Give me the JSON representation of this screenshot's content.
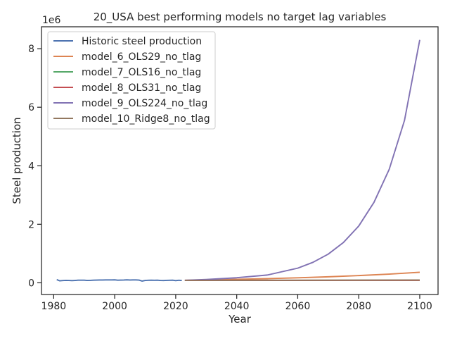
{
  "chart_data": {
    "type": "line",
    "title": "20_USA best performing models no target lag variables",
    "xlabel": "Year",
    "ylabel": "Steel production",
    "y_offset_text": "1e6",
    "xlim": [
      1976,
      2106
    ],
    "ylim": [
      -0.4,
      8.75
    ],
    "y_unit_multiplier": 1000000,
    "xticks": [
      1980,
      2000,
      2020,
      2040,
      2060,
      2080,
      2100
    ],
    "yticks": [
      0,
      2,
      4,
      6,
      8
    ],
    "grid": false,
    "legend_position": "top-left",
    "series": [
      {
        "name": "Historic steel production",
        "color": "#4c72b0",
        "x": [
          1981,
          1982,
          1983,
          1984,
          1985,
          1986,
          1987,
          1988,
          1989,
          1990,
          1991,
          1992,
          1993,
          1994,
          1995,
          1996,
          1997,
          1998,
          1999,
          2000,
          2001,
          2002,
          2003,
          2004,
          2005,
          2006,
          2007,
          2008,
          2009,
          2010,
          2011,
          2012,
          2013,
          2014,
          2015,
          2016,
          2017,
          2018,
          2019,
          2020,
          2021,
          2022
        ],
        "y": [
          0.109,
          0.067,
          0.077,
          0.084,
          0.08,
          0.074,
          0.081,
          0.09,
          0.089,
          0.09,
          0.08,
          0.084,
          0.089,
          0.091,
          0.095,
          0.095,
          0.098,
          0.099,
          0.097,
          0.102,
          0.09,
          0.092,
          0.094,
          0.1,
          0.095,
          0.099,
          0.098,
          0.092,
          0.058,
          0.081,
          0.087,
          0.089,
          0.087,
          0.088,
          0.079,
          0.078,
          0.082,
          0.087,
          0.088,
          0.073,
          0.086,
          0.081
        ]
      },
      {
        "name": "model_6_OLS29_no_tlag",
        "color": "#dd8452",
        "x": [
          2023,
          2030,
          2040,
          2050,
          2060,
          2070,
          2080,
          2090,
          2100
        ],
        "y": [
          0.085,
          0.098,
          0.118,
          0.142,
          0.171,
          0.205,
          0.247,
          0.297,
          0.36
        ]
      },
      {
        "name": "model_7_OLS16_no_tlag",
        "color": "#55a868",
        "x": [
          2023,
          2040,
          2060,
          2080,
          2100
        ],
        "y": [
          0.082,
          0.083,
          0.084,
          0.085,
          0.086
        ]
      },
      {
        "name": "model_8_OLS31_no_tlag",
        "color": "#c44e52",
        "x": [
          2023,
          2040,
          2060,
          2080,
          2100
        ],
        "y": [
          0.081,
          0.082,
          0.082,
          0.083,
          0.083
        ]
      },
      {
        "name": "model_9_OLS224_no_tlag",
        "color": "#8172b3",
        "x": [
          2023,
          2030,
          2040,
          2050,
          2060,
          2065,
          2070,
          2075,
          2080,
          2085,
          2090,
          2095,
          2100
        ],
        "y": [
          0.085,
          0.112,
          0.172,
          0.265,
          0.5,
          0.7,
          0.98,
          1.38,
          1.94,
          2.75,
          3.88,
          5.55,
          8.3
        ]
      },
      {
        "name": "model_10_Ridge8_no_tlag",
        "color": "#937860",
        "x": [
          2023,
          2040,
          2060,
          2080,
          2100
        ],
        "y": [
          0.083,
          0.087,
          0.09,
          0.093,
          0.096
        ]
      }
    ]
  }
}
